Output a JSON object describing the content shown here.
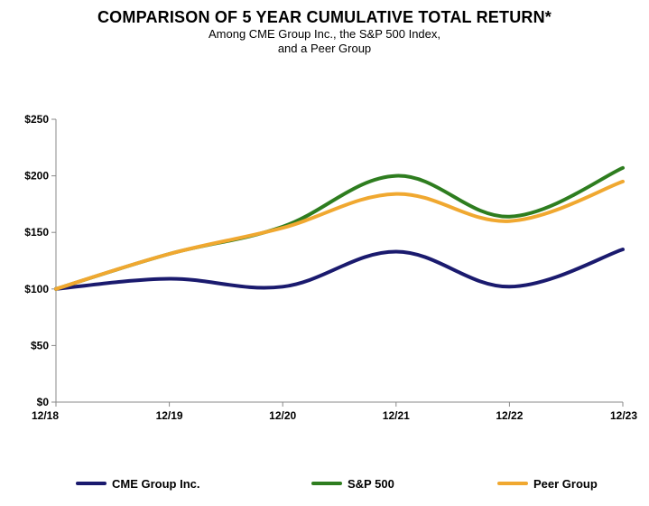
{
  "header": {
    "title": "COMPARISON OF 5 YEAR CUMULATIVE TOTAL RETURN*",
    "subtitle_line1": "Among CME Group Inc., the S&P 500 Index,",
    "subtitle_line2": "and a Peer Group"
  },
  "chart_data": {
    "type": "line",
    "categories": [
      "12/18",
      "12/19",
      "12/20",
      "12/21",
      "12/22",
      "12/23"
    ],
    "y_tick_labels": [
      "$0",
      "$50",
      "$100",
      "$150",
      "$200",
      "$250"
    ],
    "y_ticks": [
      0,
      50,
      100,
      150,
      200,
      250
    ],
    "ylim": [
      0,
      250
    ],
    "grid": false,
    "legend_position": "bottom",
    "series": [
      {
        "name": "CME Group Inc.",
        "color": "#1a1a6e",
        "values": [
          100,
          109,
          102,
          133,
          102,
          135
        ]
      },
      {
        "name": "S&P 500",
        "color": "#2e7d1f",
        "values": [
          100,
          131,
          155,
          200,
          164,
          207
        ]
      },
      {
        "name": "Peer Group",
        "color": "#f0a830",
        "values": [
          100,
          131,
          154,
          184,
          160,
          195
        ]
      }
    ]
  }
}
